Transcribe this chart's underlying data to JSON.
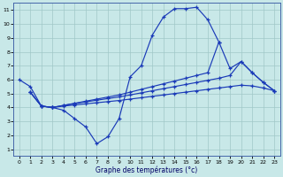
{
  "bg_color": "#c8e8e8",
  "grid_color": "#a0c8c8",
  "line_color": "#1a3ab8",
  "xlabel": "Graphe des températures (°c)",
  "xlim": [
    -0.5,
    23.5
  ],
  "ylim": [
    0.5,
    11.5
  ],
  "xticks": [
    0,
    1,
    2,
    3,
    4,
    5,
    6,
    7,
    8,
    9,
    10,
    11,
    12,
    13,
    14,
    15,
    16,
    17,
    18,
    19,
    20,
    21,
    22,
    23
  ],
  "yticks": [
    1,
    2,
    3,
    4,
    5,
    6,
    7,
    8,
    9,
    10,
    11
  ],
  "curve1_x": [
    0,
    1,
    2,
    3,
    4,
    5,
    6,
    7,
    8,
    9,
    10,
    11,
    12,
    13,
    14,
    15,
    16,
    17,
    18
  ],
  "curve1_y": [
    6.0,
    5.5,
    4.1,
    4.0,
    3.8,
    3.2,
    2.6,
    1.4,
    1.9,
    3.2,
    6.2,
    7.0,
    9.2,
    10.5,
    11.1,
    11.1,
    11.2,
    10.3,
    8.7
  ],
  "curve2_x": [
    1,
    2,
    3,
    4,
    5,
    6,
    7,
    8,
    9,
    10,
    11,
    12,
    13,
    14,
    15,
    16,
    17,
    18,
    19,
    20,
    21,
    22,
    23
  ],
  "curve2_y": [
    5.1,
    4.1,
    4.0,
    4.15,
    4.3,
    4.45,
    4.6,
    4.75,
    4.9,
    5.1,
    5.3,
    5.5,
    5.7,
    5.9,
    6.1,
    6.3,
    6.5,
    8.7,
    6.8,
    7.3,
    6.5,
    5.8,
    5.2
  ],
  "curve3_x": [
    1,
    2,
    3,
    4,
    5,
    6,
    7,
    8,
    9,
    10,
    11,
    12,
    13,
    14,
    15,
    16,
    17,
    18,
    19,
    20,
    21,
    22,
    23
  ],
  "curve3_y": [
    5.1,
    4.1,
    4.0,
    4.15,
    4.28,
    4.4,
    4.52,
    4.64,
    4.76,
    4.9,
    5.05,
    5.2,
    5.35,
    5.5,
    5.65,
    5.8,
    5.95,
    6.1,
    6.3,
    7.3,
    6.5,
    5.8,
    5.2
  ],
  "curve4_x": [
    1,
    2,
    3,
    4,
    5,
    6,
    7,
    8,
    9,
    10,
    11,
    12,
    13,
    14,
    15,
    16,
    17,
    18,
    19,
    20,
    21,
    22,
    23
  ],
  "curve4_y": [
    5.1,
    4.1,
    4.0,
    4.1,
    4.18,
    4.26,
    4.34,
    4.42,
    4.5,
    4.6,
    4.7,
    4.8,
    4.9,
    5.0,
    5.1,
    5.2,
    5.3,
    5.4,
    5.5,
    5.6,
    5.55,
    5.4,
    5.2
  ]
}
